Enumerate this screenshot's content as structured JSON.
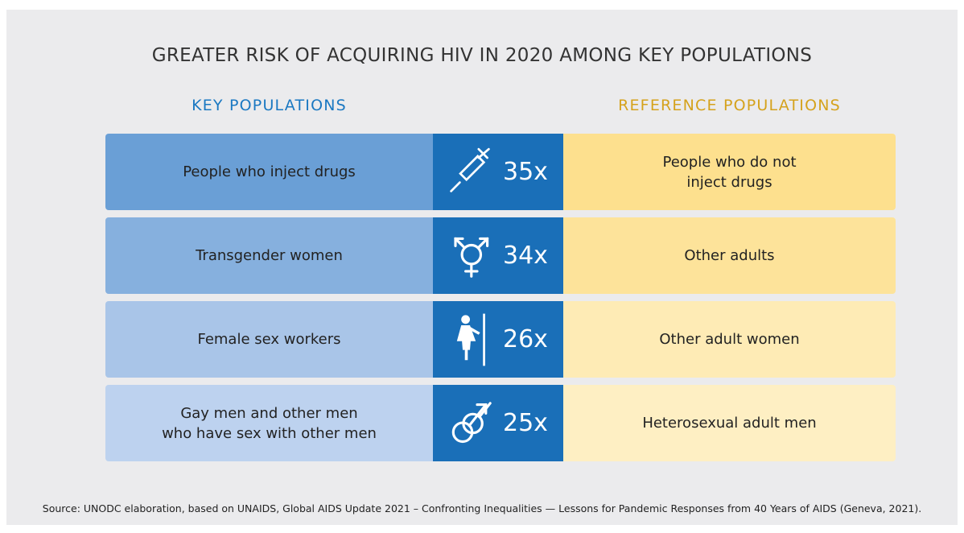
{
  "title": "GREATER RISK OF ACQUIRING HIV IN 2020 AMONG KEY POPULATIONS",
  "headers": {
    "key": "KEY POPULATIONS",
    "reference": "REFERENCE  POPULATIONS"
  },
  "rows": [
    {
      "key": [
        "People who inject drugs"
      ],
      "risk": "35x",
      "reference": [
        "People who do not",
        "inject drugs"
      ]
    },
    {
      "key": [
        "Transgender women"
      ],
      "risk": "34x",
      "reference": [
        "Other adults"
      ]
    },
    {
      "key": [
        "Female sex workers"
      ],
      "risk": "26x",
      "reference": [
        "Other adult women"
      ]
    },
    {
      "key": [
        "Gay men and other men",
        "who have sex with other men"
      ],
      "risk": "25x",
      "reference": [
        "Heterosexual adult men"
      ]
    }
  ],
  "source": "Source: UNODC elaboration, based on UNAIDS, Global AIDS Update 2021 – Confronting Inequalities — Lessons for Pandemic Responses from 40 Years of AIDS (Geneva, 2021)."
}
